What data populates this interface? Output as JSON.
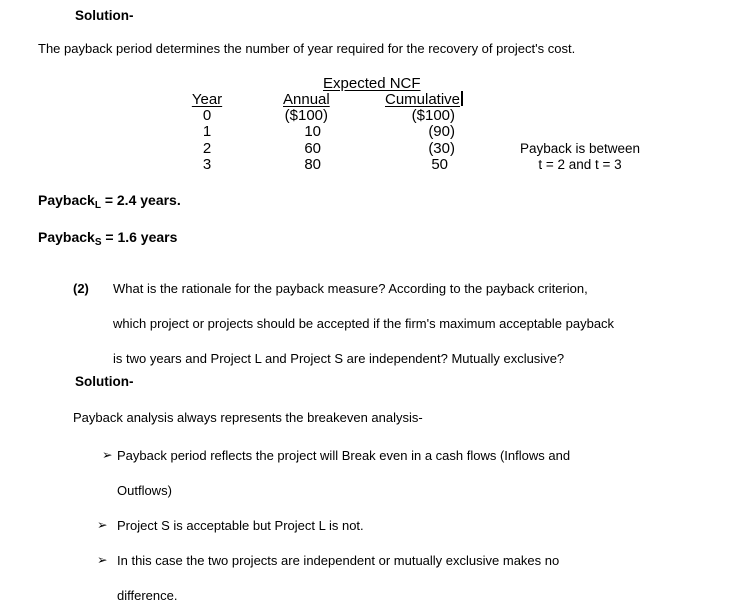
{
  "solution1": {
    "heading": "Solution-",
    "body": "The payback period determines the number of year required for the recovery of project's cost."
  },
  "ncf_table": {
    "group_header": "Expected NCF",
    "columns": {
      "year": "Year",
      "annual": "Annual",
      "cumulative": "Cumulative"
    },
    "rows": [
      {
        "year": "0",
        "annual": "($100)",
        "cumulative": "($100)"
      },
      {
        "year": "1",
        "annual": "10",
        "cumulative": "(90)"
      },
      {
        "year": "2",
        "annual": "60",
        "cumulative": "(30)"
      },
      {
        "year": "3",
        "annual": "80",
        "cumulative": "50"
      }
    ],
    "side_note_lines": [
      "Payback is between",
      "t = 2 and t = 3"
    ]
  },
  "payback_results": [
    {
      "base": "Payback",
      "subscript": "L",
      "value_text": " = 2.4 years."
    },
    {
      "base": "Payback",
      "subscript": "S",
      "value_text": " = 1.6 years"
    }
  ],
  "question2": {
    "number": "(2)",
    "lines": [
      "What is the rationale for the payback measure? According to the payback criterion,",
      "which project or projects should be accepted if the firm's maximum acceptable payback",
      "is two years and Project L and Project S are independent? Mutually exclusive?"
    ]
  },
  "solution2": {
    "heading": "Solution-",
    "intro": "Payback analysis always represents the breakeven analysis-",
    "bullet_char": "➢",
    "bullets": [
      {
        "lines": [
          "Payback period reflects the project will Break even in a cash flows (Inflows and",
          "Outflows)"
        ]
      },
      {
        "lines": [
          "Project S is acceptable but Project L is not."
        ]
      },
      {
        "lines": [
          "In this case the two projects are independent or mutually exclusive makes no",
          "difference."
        ]
      }
    ]
  },
  "colors": {
    "text": "#000000",
    "background": "#ffffff"
  }
}
